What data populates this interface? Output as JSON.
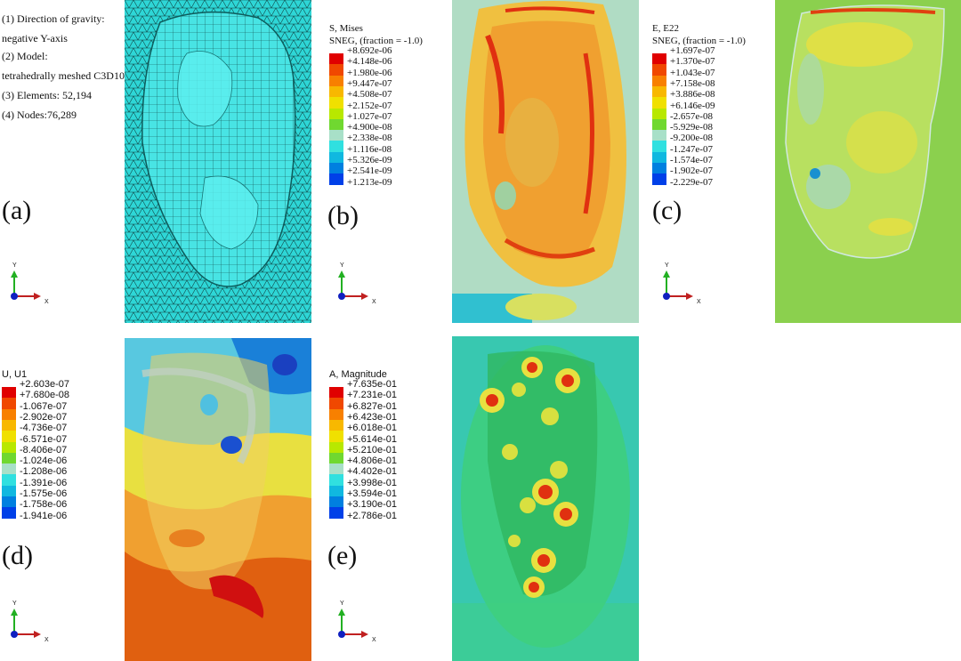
{
  "info_lines": [
    "(1) Direction of gravity:",
    "negative Y-axis",
    "(2) Model:",
    "tetrahedrally meshed C3D10",
    "(3) Elements: 52,194",
    "(4) Nodes:76,289"
  ],
  "panel_letters": {
    "a": "(a)",
    "b": "(b)",
    "c": "(c)",
    "d": "(d)",
    "e": "(e)"
  },
  "axis_labels": {
    "y": "Y",
    "x": "X"
  },
  "legends": {
    "b": {
      "title1": "S, Mises",
      "title2": "SNEG, (fraction = -1.0)",
      "values": [
        "+8.692e-06",
        "+4.148e-06",
        "+1.980e-06",
        "+9.447e-07",
        "+4.508e-07",
        "+2.152e-07",
        "+1.027e-07",
        "+4.900e-08",
        "+2.338e-08",
        "+1.116e-08",
        "+5.326e-09",
        "+2.541e-09",
        "+1.213e-09"
      ]
    },
    "c": {
      "title1": "E, E22",
      "title2": "SNEG, (fraction = -1.0)",
      "values": [
        "+1.697e-07",
        "+1.370e-07",
        "+1.043e-07",
        "+7.158e-08",
        "+3.886e-08",
        "+6.146e-09",
        "-2.657e-08",
        "-5.929e-08",
        "-9.200e-08",
        "-1.247e-07",
        "-1.574e-07",
        "-1.902e-07",
        "-2.229e-07"
      ]
    },
    "d": {
      "title1": "U, U1",
      "values": [
        "+2.603e-07",
        "+7.680e-08",
        "-1.067e-07",
        "-2.902e-07",
        "-4.736e-07",
        "-6.571e-07",
        "-8.406e-07",
        "-1.024e-06",
        "-1.208e-06",
        "-1.391e-06",
        "-1.575e-06",
        "-1.758e-06",
        "-1.941e-06"
      ]
    },
    "e": {
      "title1": "A, Magnitude",
      "values": [
        "+7.635e-01",
        "+7.231e-01",
        "+6.827e-01",
        "+6.423e-01",
        "+6.018e-01",
        "+5.614e-01",
        "+5.210e-01",
        "+4.806e-01",
        "+4.402e-01",
        "+3.998e-01",
        "+3.594e-01",
        "+3.190e-01",
        "+2.786e-01"
      ]
    }
  },
  "colors": {
    "scale": [
      "#e00000",
      "#f04800",
      "#f88000",
      "#f8b800",
      "#f0e000",
      "#b8e800",
      "#70d830",
      "#a8e0c8",
      "#30e0e0",
      "#10b8e0",
      "#0080e0",
      "#0040e8",
      "#0000d8"
    ],
    "mesh": "#2ed6d6",
    "background_green": "#8bd04e"
  }
}
